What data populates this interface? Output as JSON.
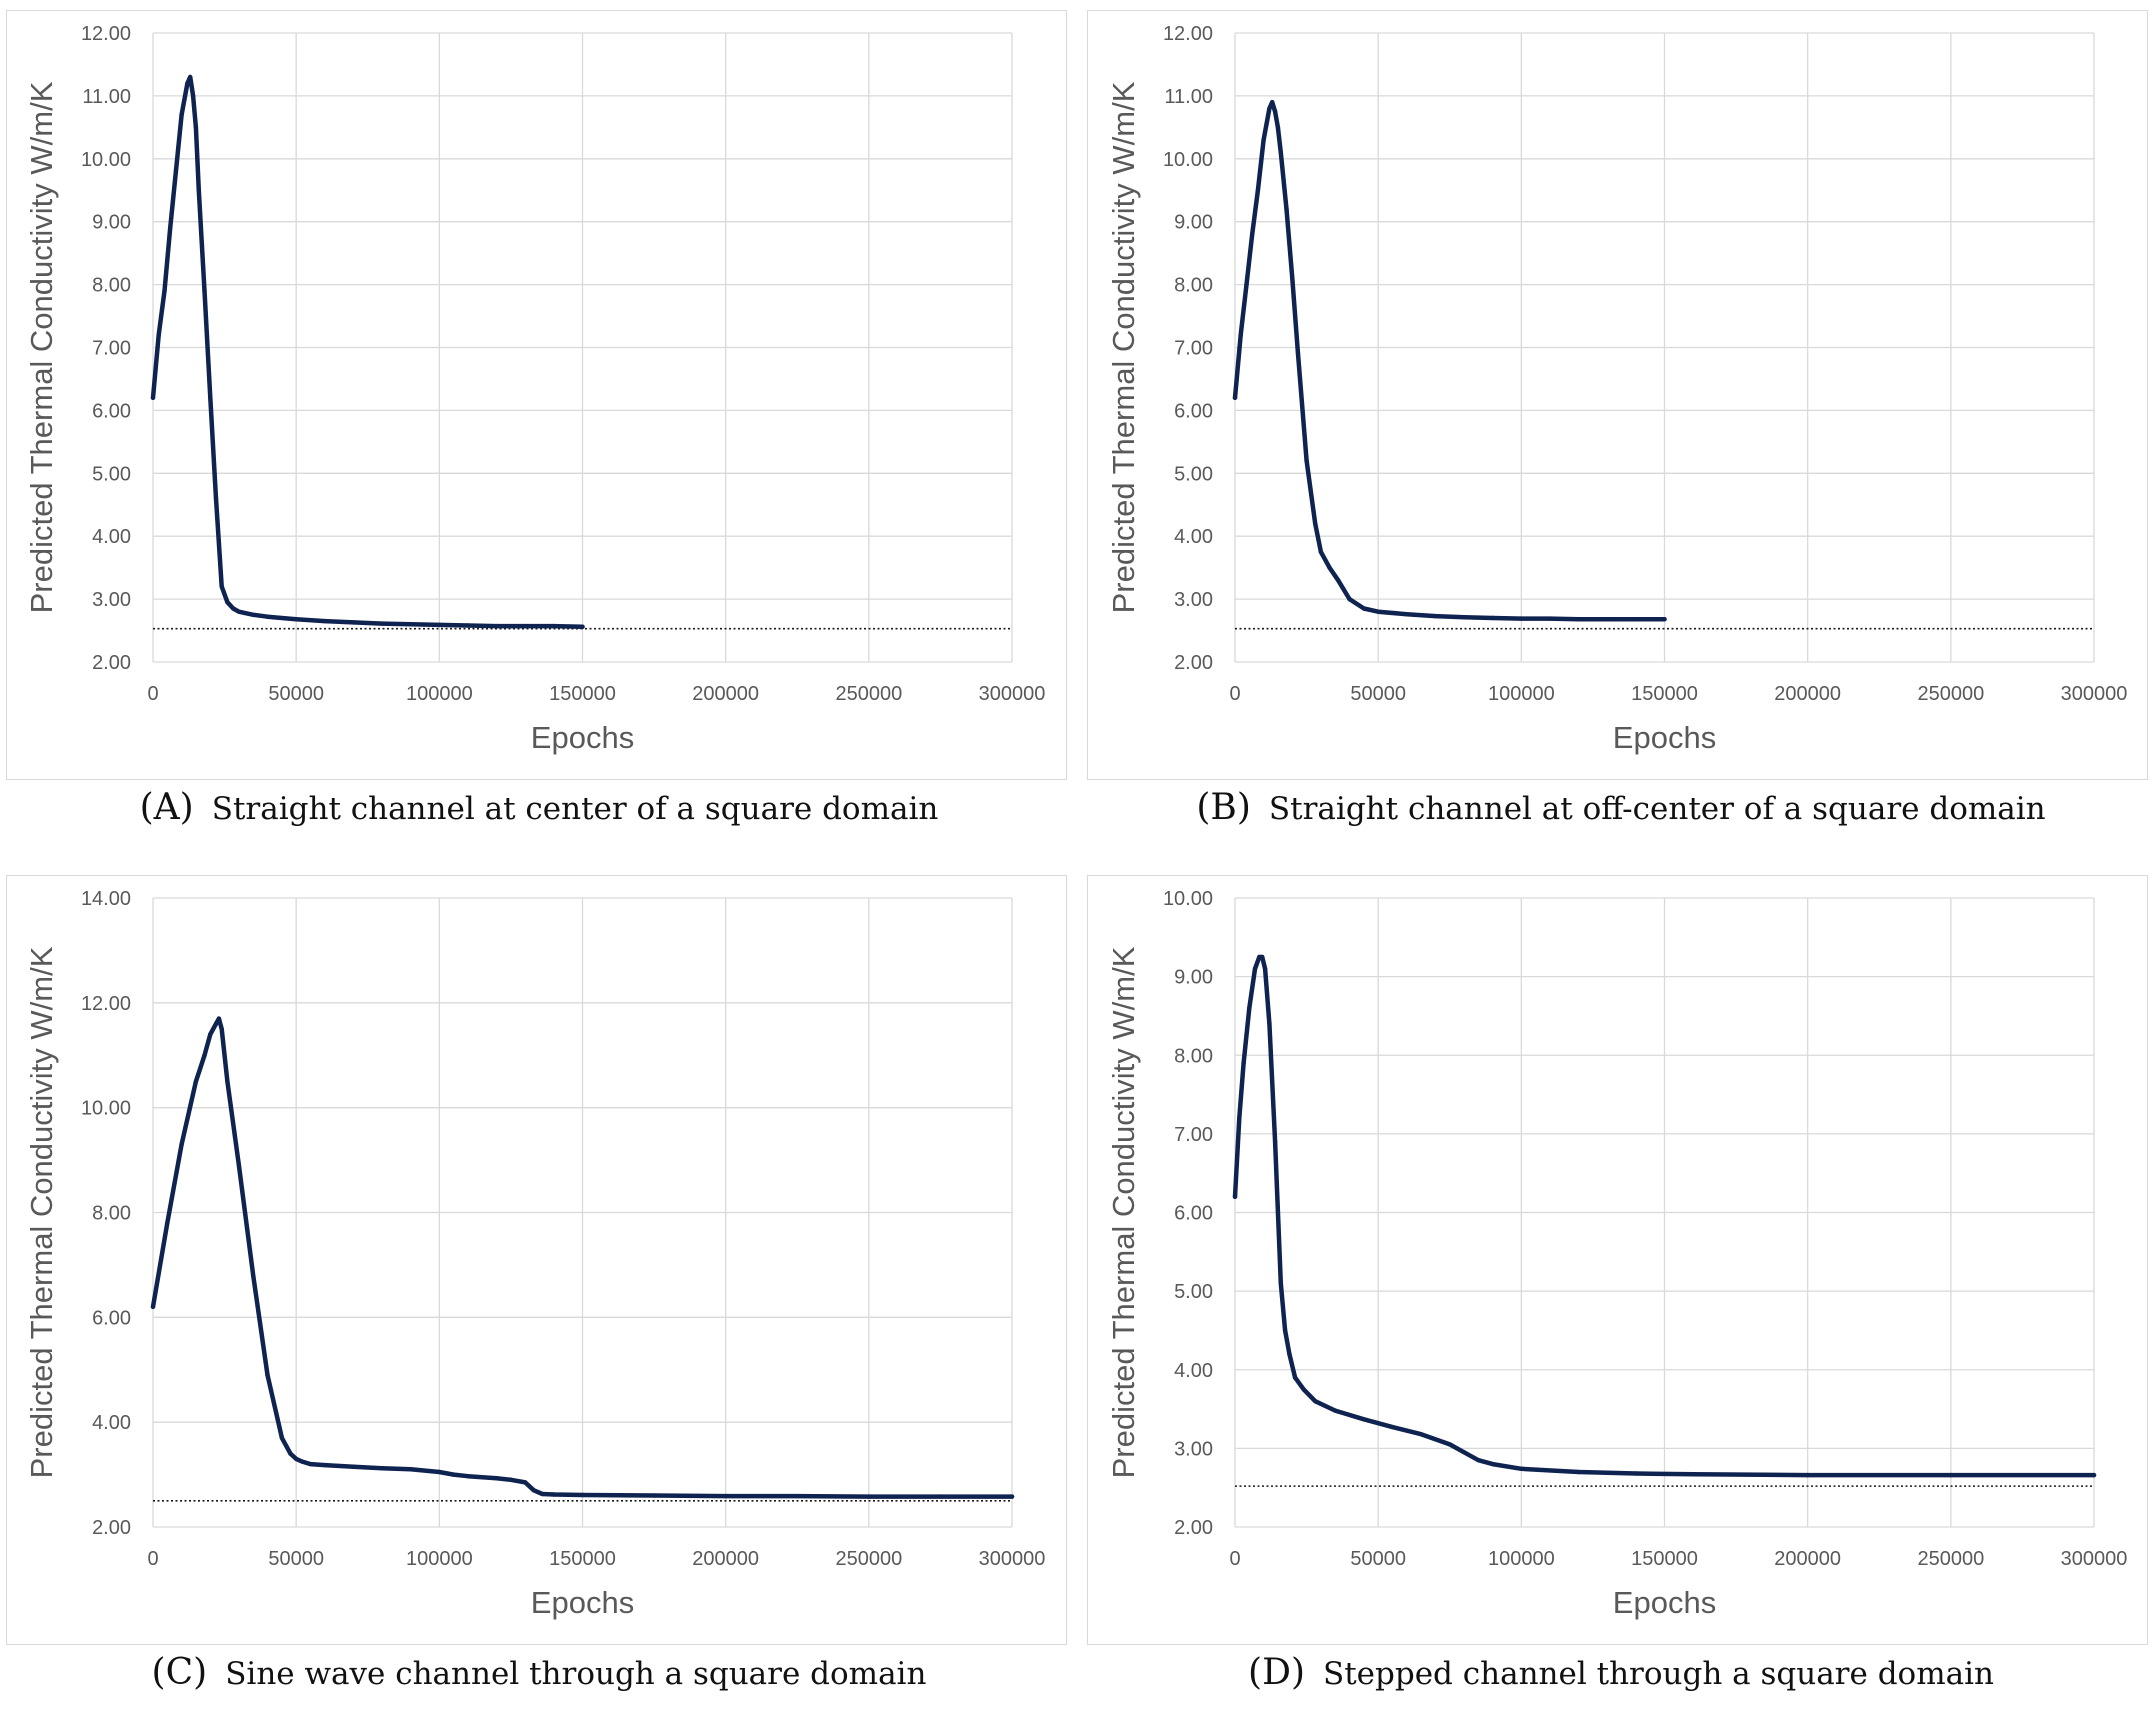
{
  "chart_data": [
    {
      "type": "line",
      "panel": "A",
      "caption_tag": "(A)",
      "caption": "Straight channel at center of a square domain",
      "xlabel": "Epochs",
      "ylabel": "Predicted Thermal Conductivity W/m/K",
      "xlim": [
        0,
        300000
      ],
      "ylim": [
        2,
        12
      ],
      "xticks": [
        0,
        50000,
        100000,
        150000,
        200000,
        250000,
        300000
      ],
      "xtick_labels": [
        "0",
        "50000",
        "100000",
        "150000",
        "200000",
        "250000",
        "300000"
      ],
      "yticks": [
        2,
        3,
        4,
        5,
        6,
        7,
        8,
        9,
        10,
        11,
        12
      ],
      "ytick_labels": [
        "2.00",
        "3.00",
        "4.00",
        "5.00",
        "6.00",
        "7.00",
        "8.00",
        "9.00",
        "10.00",
        "11.00",
        "12.00"
      ],
      "grid": true,
      "reference_line": 2.53,
      "line_color": "#0f2350",
      "series": [
        {
          "name": "Predicted thermal conductivity",
          "x": [
            0,
            2000,
            4000,
            6000,
            8000,
            10000,
            12000,
            13000,
            14000,
            15000,
            16000,
            18000,
            20000,
            22000,
            24000,
            26000,
            28000,
            30000,
            35000,
            40000,
            50000,
            60000,
            70000,
            80000,
            90000,
            100000,
            110000,
            120000,
            130000,
            140000,
            150000
          ],
          "y": [
            6.2,
            7.2,
            7.9,
            8.9,
            9.8,
            10.7,
            11.2,
            11.3,
            11.0,
            10.5,
            9.5,
            7.9,
            6.2,
            4.6,
            3.2,
            2.95,
            2.85,
            2.8,
            2.75,
            2.72,
            2.68,
            2.65,
            2.63,
            2.61,
            2.6,
            2.59,
            2.58,
            2.57,
            2.57,
            2.57,
            2.56
          ]
        }
      ]
    },
    {
      "type": "line",
      "panel": "B",
      "caption_tag": "(B)",
      "caption": "Straight channel at off-center of a square domain",
      "xlabel": "Epochs",
      "ylabel": "Predicted Thermal Conductivity W/m/K",
      "xlim": [
        0,
        300000
      ],
      "ylim": [
        2,
        12
      ],
      "xticks": [
        0,
        50000,
        100000,
        150000,
        200000,
        250000,
        300000
      ],
      "xtick_labels": [
        "0",
        "50000",
        "100000",
        "150000",
        "200000",
        "250000",
        "300000"
      ],
      "yticks": [
        2,
        3,
        4,
        5,
        6,
        7,
        8,
        9,
        10,
        11,
        12
      ],
      "ytick_labels": [
        "2.00",
        "3.00",
        "4.00",
        "5.00",
        "6.00",
        "7.00",
        "8.00",
        "9.00",
        "10.00",
        "11.00",
        "12.00"
      ],
      "grid": true,
      "reference_line": 2.53,
      "line_color": "#0f2350",
      "series": [
        {
          "name": "Predicted thermal conductivity",
          "x": [
            0,
            2000,
            4000,
            6000,
            8000,
            10000,
            12000,
            13000,
            14000,
            15000,
            16000,
            18000,
            20000,
            22000,
            25000,
            28000,
            30000,
            33000,
            36000,
            40000,
            45000,
            50000,
            60000,
            70000,
            80000,
            90000,
            100000,
            110000,
            120000,
            130000,
            140000,
            150000
          ],
          "y": [
            6.2,
            7.2,
            8.0,
            8.8,
            9.5,
            10.3,
            10.8,
            10.9,
            10.75,
            10.5,
            10.1,
            9.2,
            8.1,
            6.9,
            5.2,
            4.2,
            3.75,
            3.5,
            3.3,
            3.0,
            2.85,
            2.8,
            2.76,
            2.73,
            2.71,
            2.7,
            2.69,
            2.69,
            2.68,
            2.68,
            2.68,
            2.68
          ]
        }
      ]
    },
    {
      "type": "line",
      "panel": "C",
      "caption_tag": "(C)",
      "caption": "Sine wave channel through a square domain",
      "xlabel": "Epochs",
      "ylabel": "Predicted Thermal Conductivity W/m/K",
      "xlim": [
        0,
        300000
      ],
      "ylim": [
        2,
        14
      ],
      "xticks": [
        0,
        50000,
        100000,
        150000,
        200000,
        250000,
        300000
      ],
      "xtick_labels": [
        "0",
        "50000",
        "100000",
        "150000",
        "200000",
        "250000",
        "300000"
      ],
      "yticks": [
        2,
        4,
        6,
        8,
        10,
        12,
        14
      ],
      "ytick_labels": [
        "2.00",
        "4.00",
        "6.00",
        "8.00",
        "10.00",
        "12.00",
        "14.00"
      ],
      "grid": true,
      "reference_line": 2.5,
      "line_color": "#0f2350",
      "series": [
        {
          "name": "Predicted thermal conductivity",
          "x": [
            0,
            5000,
            10000,
            15000,
            18000,
            20000,
            22000,
            23000,
            24000,
            26000,
            30000,
            35000,
            40000,
            45000,
            48000,
            50000,
            52000,
            55000,
            60000,
            70000,
            80000,
            90000,
            100000,
            105000,
            110000,
            120000,
            125000,
            130000,
            133000,
            136000,
            140000,
            150000,
            175000,
            200000,
            225000,
            250000,
            275000,
            300000
          ],
          "y": [
            6.2,
            7.8,
            9.3,
            10.5,
            11.0,
            11.4,
            11.6,
            11.7,
            11.5,
            10.5,
            8.9,
            6.8,
            4.9,
            3.7,
            3.4,
            3.3,
            3.25,
            3.2,
            3.18,
            3.15,
            3.12,
            3.1,
            3.05,
            3.0,
            2.97,
            2.93,
            2.9,
            2.85,
            2.7,
            2.63,
            2.62,
            2.61,
            2.6,
            2.59,
            2.59,
            2.58,
            2.58,
            2.58
          ]
        }
      ]
    },
    {
      "type": "line",
      "panel": "D",
      "caption_tag": "(D)",
      "caption": "Stepped channel through a square domain",
      "xlabel": "Epochs",
      "ylabel": "Predicted Thermal Conductivity W/m/K",
      "xlim": [
        0,
        300000
      ],
      "ylim": [
        2,
        10
      ],
      "xticks": [
        0,
        50000,
        100000,
        150000,
        200000,
        250000,
        300000
      ],
      "xtick_labels": [
        "0",
        "50000",
        "100000",
        "150000",
        "200000",
        "250000",
        "300000"
      ],
      "yticks": [
        2,
        3,
        4,
        5,
        6,
        7,
        8,
        9,
        10
      ],
      "ytick_labels": [
        "2.00",
        "3.00",
        "4.00",
        "5.00",
        "6.00",
        "7.00",
        "8.00",
        "9.00",
        "10.00"
      ],
      "grid": true,
      "reference_line": 2.52,
      "line_color": "#0f2350",
      "series": [
        {
          "name": "Predicted thermal conductivity",
          "x": [
            0,
            1500,
            3000,
            5000,
            7000,
            8500,
            9500,
            10500,
            12000,
            14000,
            16000,
            17500,
            19000,
            21000,
            24000,
            28000,
            35000,
            45000,
            55000,
            65000,
            75000,
            80000,
            85000,
            90000,
            100000,
            120000,
            140000,
            160000,
            200000,
            250000,
            300000
          ],
          "y": [
            6.2,
            7.2,
            7.9,
            8.6,
            9.1,
            9.25,
            9.25,
            9.1,
            8.4,
            6.9,
            5.1,
            4.5,
            4.2,
            3.9,
            3.75,
            3.6,
            3.48,
            3.37,
            3.27,
            3.18,
            3.05,
            2.95,
            2.85,
            2.8,
            2.74,
            2.7,
            2.68,
            2.67,
            2.66,
            2.66,
            2.66
          ]
        }
      ]
    }
  ]
}
